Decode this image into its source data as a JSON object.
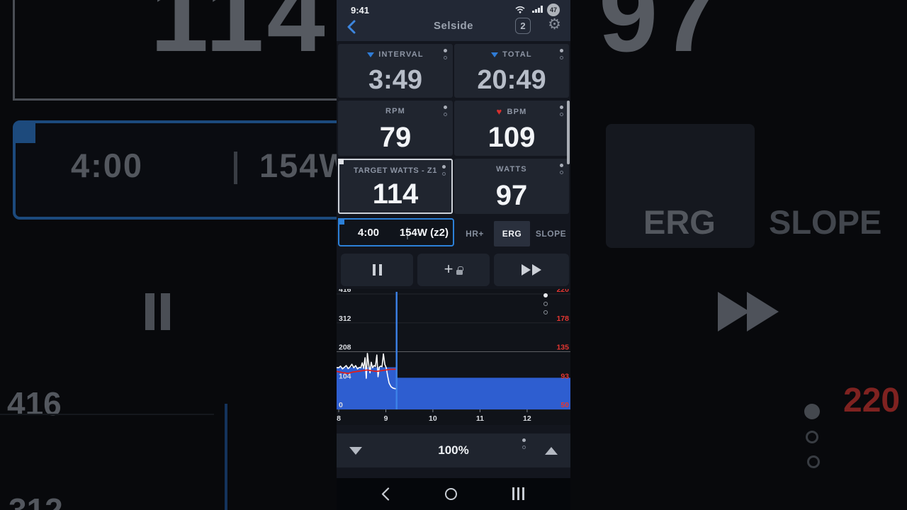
{
  "status_bar": {
    "time": "9:41",
    "battery_pct": "47"
  },
  "header": {
    "title": "Selside",
    "interval_count_badge": "2"
  },
  "metrics": {
    "interval": {
      "label": "INTERVAL",
      "value": "3:49"
    },
    "total": {
      "label": "TOTAL",
      "value": "20:49"
    },
    "rpm": {
      "label": "RPM",
      "value": "79"
    },
    "bpm": {
      "label": "BPM",
      "value": "109"
    },
    "target_watts": {
      "label": "TARGET WATTS - Z1",
      "value": "114"
    },
    "watts": {
      "label": "WATTS",
      "value": "97"
    }
  },
  "next_interval": {
    "duration": "4:00",
    "power": "154W (z2)"
  },
  "mode_tabs": {
    "hr": "HR+",
    "erg": "ERG",
    "slope": "SLOPE",
    "active": "ERG"
  },
  "intensity": {
    "value": "100%"
  },
  "chart_data": {
    "type": "area+line",
    "x_axis": {
      "ticks": [
        8,
        9,
        10,
        11,
        12
      ],
      "min": 7.955,
      "max": 12.92,
      "unit": "minutes"
    },
    "left_axis": {
      "unit": "watts",
      "ticks": [
        416,
        312,
        208,
        104,
        0
      ],
      "max": 434,
      "major_tick": 208
    },
    "right_axis": {
      "unit": "bpm",
      "ticks": [
        220,
        178,
        135,
        93,
        50
      ],
      "min": 50,
      "span": 170
    },
    "cursor_time": 9.23,
    "target_segments": [
      {
        "from": 7.955,
        "to": 9.23,
        "watts": 152
      },
      {
        "from": 9.23,
        "to": 12.92,
        "watts": 114
      }
    ],
    "series": [
      {
        "name": "power_watts",
        "axis": "left",
        "color": "#ffffff",
        "width": 1.6,
        "points": [
          [
            7.955,
            151
          ],
          [
            8.0,
            150
          ],
          [
            8.04,
            156
          ],
          [
            8.08,
            146
          ],
          [
            8.12,
            152
          ],
          [
            8.16,
            158
          ],
          [
            8.2,
            147
          ],
          [
            8.24,
            153
          ],
          [
            8.28,
            163
          ],
          [
            8.32,
            150
          ],
          [
            8.36,
            158
          ],
          [
            8.4,
            146
          ],
          [
            8.44,
            152
          ],
          [
            8.47,
            150
          ],
          [
            8.5,
            168
          ],
          [
            8.53,
            148
          ],
          [
            8.56,
            186
          ],
          [
            8.585,
            112
          ],
          [
            8.61,
            202
          ],
          [
            8.64,
            158
          ],
          [
            8.665,
            132
          ],
          [
            8.69,
            170
          ],
          [
            8.72,
            150
          ],
          [
            8.75,
            158
          ],
          [
            8.78,
            155
          ],
          [
            8.81,
            196
          ],
          [
            8.835,
            118
          ],
          [
            8.86,
            152
          ],
          [
            8.89,
            156
          ],
          [
            8.92,
            154
          ],
          [
            8.95,
            200
          ],
          [
            8.98,
            162
          ],
          [
            9.01,
            150
          ],
          [
            9.04,
            120
          ],
          [
            9.07,
            95
          ],
          [
            9.11,
            82
          ],
          [
            9.15,
            77
          ],
          [
            9.19,
            75
          ],
          [
            9.23,
            74
          ]
        ]
      },
      {
        "name": "heart_rate_bpm",
        "axis": "right",
        "color": "#e0201c",
        "width": 1.8,
        "points": [
          [
            7.955,
            106
          ],
          [
            8.1,
            104
          ],
          [
            8.2,
            103
          ],
          [
            8.3,
            105
          ],
          [
            8.4,
            106
          ],
          [
            8.5,
            107
          ],
          [
            8.6,
            108
          ],
          [
            8.7,
            107
          ],
          [
            8.8,
            106
          ],
          [
            8.9,
            107
          ],
          [
            9.0,
            108
          ],
          [
            9.1,
            109
          ],
          [
            9.23,
            109
          ]
        ]
      }
    ],
    "colors": {
      "target_fill": "#2e5ed0",
      "cursor": "#3c82e8",
      "grid": "rgba(255,255,255,0.08)",
      "grid_major": "rgba(255,255,255,0.32)",
      "left_tick": "#d9dce1",
      "right_tick": "#e53631",
      "x_tick": "#80858e"
    }
  },
  "background": {
    "left": {
      "target_value": "114",
      "interval_duration": "4:00",
      "interval_power": "154W",
      "axis_label_416": "416",
      "axis_label_312": "312"
    },
    "right": {
      "watts_value": "97",
      "tab_erg": "ERG",
      "tab_slope": "SLOPE",
      "hr_label_220": "220"
    }
  }
}
